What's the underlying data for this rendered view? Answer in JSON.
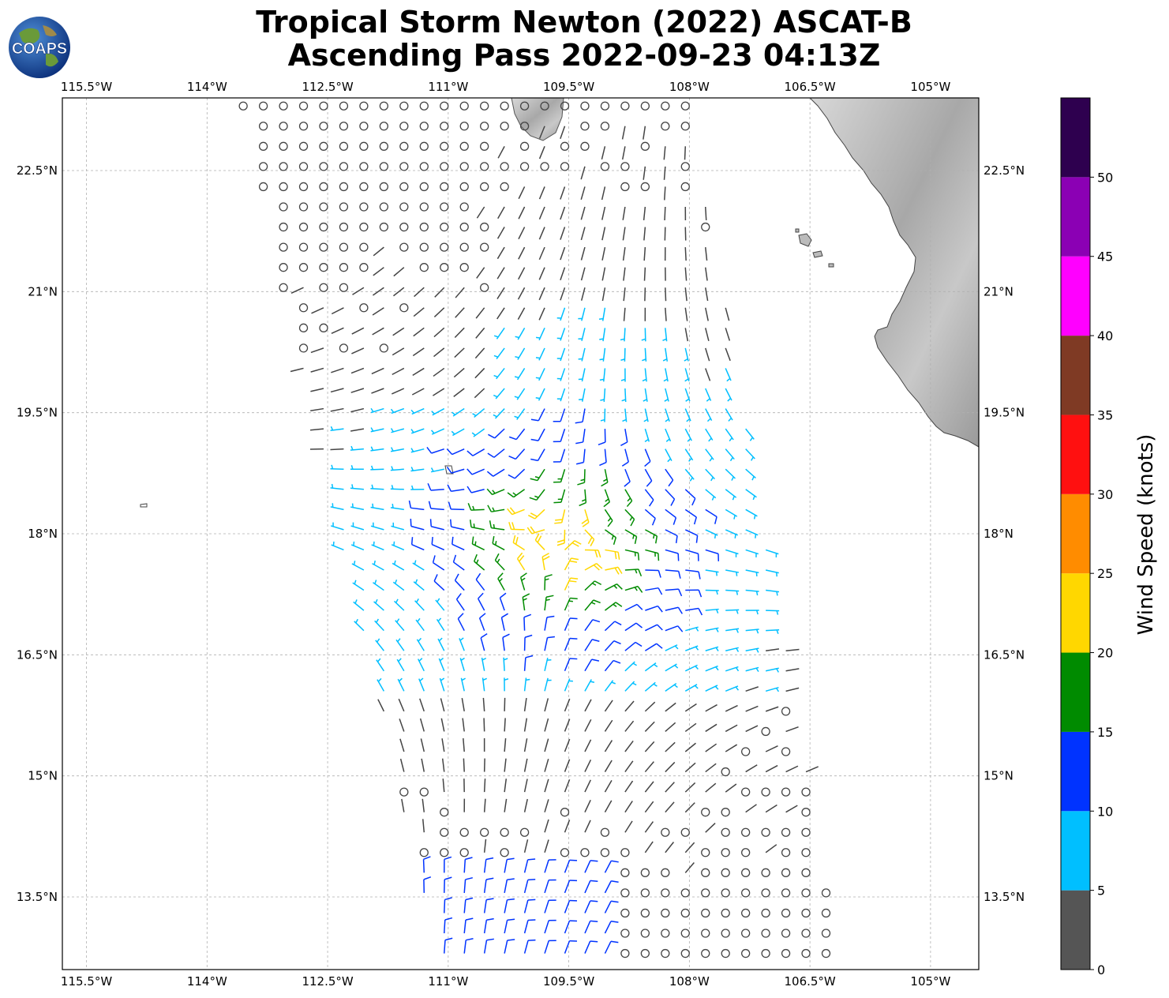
{
  "title": {
    "line1": "Tropical Storm Newton (2022) ASCAT-B",
    "line2": "Ascending Pass 2022-09-23 04:13Z"
  },
  "logo": {
    "text": "COAPS",
    "icon": "globe-logo-icon"
  },
  "axes": {
    "lon_ticks": [
      "115.5°W",
      "114°W",
      "112.5°W",
      "111°W",
      "109.5°W",
      "108°W",
      "106.5°W",
      "105°W"
    ],
    "lat_ticks": [
      "22.5°N",
      "21°N",
      "19.5°N",
      "18°N",
      "16.5°N",
      "15°N",
      "13.5°N"
    ],
    "lon_range": [
      -115.8,
      -104.4
    ],
    "lat_range": [
      12.6,
      23.4
    ],
    "gridlines": true
  },
  "storm_center": {
    "lon": -109.6,
    "lat": 17.9
  },
  "swath": {
    "corners": [
      [
        -113.6,
        23.4
      ],
      [
        -108.0,
        23.4
      ],
      [
        -106.1,
        12.6
      ],
      [
        -111.1,
        12.6
      ]
    ]
  },
  "colorbar": {
    "label": "Wind Speed (knots)",
    "tick_labels": [
      "0",
      "5",
      "10",
      "15",
      "20",
      "25",
      "30",
      "35",
      "40",
      "45",
      "50"
    ],
    "bins": [
      {
        "min": 0,
        "max": 5,
        "color": "#555555"
      },
      {
        "min": 5,
        "max": 10,
        "color": "#00bfff"
      },
      {
        "min": 10,
        "max": 15,
        "color": "#0033ff"
      },
      {
        "min": 15,
        "max": 20,
        "color": "#008b00"
      },
      {
        "min": 20,
        "max": 25,
        "color": "#ffd700"
      },
      {
        "min": 25,
        "max": 30,
        "color": "#ff8c00"
      },
      {
        "min": 30,
        "max": 35,
        "color": "#ff1010"
      },
      {
        "min": 35,
        "max": 40,
        "color": "#7f3a24"
      },
      {
        "min": 40,
        "max": 45,
        "color": "#ff00ff"
      },
      {
        "min": 45,
        "max": 50,
        "color": "#8b00b4"
      },
      {
        "min": 50,
        "max": 55,
        "color": "#2e004f"
      }
    ]
  },
  "calm_color": "#444444",
  "land_color": "#9a9a9a"
}
